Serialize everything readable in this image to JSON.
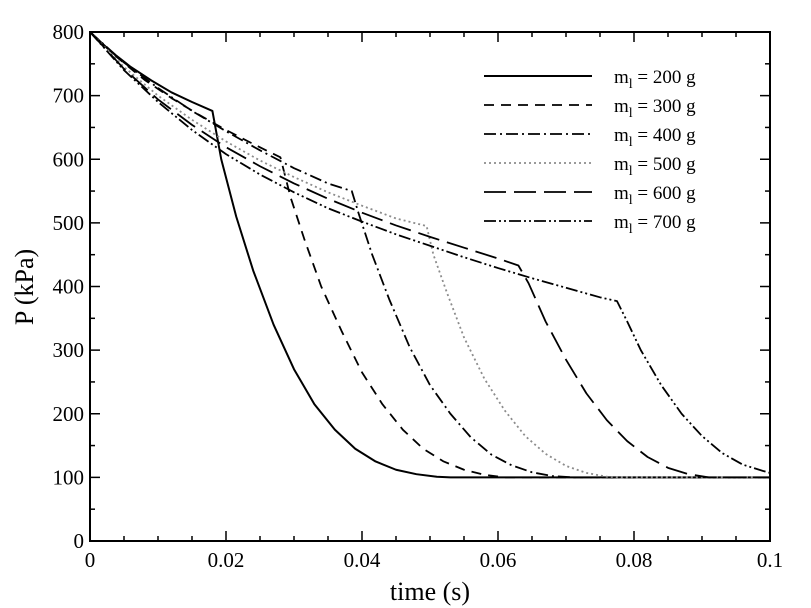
{
  "chart_data": {
    "type": "line",
    "xlabel": "time (s)",
    "ylabel": "P (kPa)",
    "xlim": [
      0,
      0.1
    ],
    "ylim": [
      0,
      800
    ],
    "xticks": [
      "0",
      "0.02",
      "0.04",
      "0.06",
      "0.08",
      "0.1"
    ],
    "yticks": [
      "0",
      "100",
      "200",
      "300",
      "400",
      "500",
      "600",
      "700",
      "800"
    ],
    "grid": false,
    "legend_position": "top-right",
    "series": [
      {
        "name": "m_l = 200 g",
        "legend": {
          "prefix": "m",
          "sub": "l",
          "suffix": " = 200 g"
        },
        "dash": "none",
        "color": "#000000",
        "width": 2,
        "points": [
          [
            0,
            800
          ],
          [
            0.003,
            770
          ],
          [
            0.006,
            745
          ],
          [
            0.009,
            724
          ],
          [
            0.012,
            705
          ],
          [
            0.015,
            690
          ],
          [
            0.018,
            676
          ],
          [
            0.0193,
            600
          ],
          [
            0.0215,
            510
          ],
          [
            0.024,
            425
          ],
          [
            0.027,
            340
          ],
          [
            0.03,
            270
          ],
          [
            0.033,
            215
          ],
          [
            0.036,
            175
          ],
          [
            0.039,
            145
          ],
          [
            0.042,
            125
          ],
          [
            0.045,
            112
          ],
          [
            0.048,
            105
          ],
          [
            0.051,
            101
          ],
          [
            0.053,
            100
          ],
          [
            0.1,
            100
          ]
        ]
      },
      {
        "name": "m_l = 300 g",
        "legend": {
          "prefix": "m",
          "sub": "l",
          "suffix": " = 300 g"
        },
        "dash": "10,7",
        "color": "#000000",
        "width": 1.8,
        "points": [
          [
            0,
            800
          ],
          [
            0.004,
            760
          ],
          [
            0.008,
            725
          ],
          [
            0.012,
            696
          ],
          [
            0.016,
            670
          ],
          [
            0.02,
            646
          ],
          [
            0.024,
            624
          ],
          [
            0.028,
            603
          ],
          [
            0.0295,
            540
          ],
          [
            0.0315,
            475
          ],
          [
            0.034,
            400
          ],
          [
            0.037,
            330
          ],
          [
            0.04,
            265
          ],
          [
            0.043,
            215
          ],
          [
            0.046,
            175
          ],
          [
            0.049,
            145
          ],
          [
            0.052,
            125
          ],
          [
            0.055,
            112
          ],
          [
            0.058,
            104
          ],
          [
            0.061,
            100
          ],
          [
            0.1,
            100
          ]
        ]
      },
      {
        "name": "m_l = 400 g",
        "legend": {
          "prefix": "m",
          "sub": "l",
          "suffix": " = 400 g"
        },
        "dash": "12,4,2,4",
        "color": "#000000",
        "width": 1.8,
        "points": [
          [
            0,
            800
          ],
          [
            0.005,
            752
          ],
          [
            0.01,
            712
          ],
          [
            0.015,
            676
          ],
          [
            0.02,
            644
          ],
          [
            0.025,
            614
          ],
          [
            0.03,
            586
          ],
          [
            0.035,
            562
          ],
          [
            0.0385,
            550
          ],
          [
            0.0395,
            515
          ],
          [
            0.0415,
            450
          ],
          [
            0.044,
            380
          ],
          [
            0.047,
            305
          ],
          [
            0.05,
            245
          ],
          [
            0.053,
            200
          ],
          [
            0.056,
            163
          ],
          [
            0.059,
            136
          ],
          [
            0.062,
            119
          ],
          [
            0.065,
            108
          ],
          [
            0.068,
            102
          ],
          [
            0.071,
            100
          ],
          [
            0.1,
            100
          ]
        ]
      },
      {
        "name": "m_l = 500 g",
        "legend": {
          "prefix": "m",
          "sub": "l",
          "suffix": " = 500 g"
        },
        "dash": "2,3",
        "color": "#8c8c8c",
        "width": 1.8,
        "points": [
          [
            0,
            800
          ],
          [
            0.005,
            745
          ],
          [
            0.01,
            700
          ],
          [
            0.015,
            662
          ],
          [
            0.02,
            628
          ],
          [
            0.025,
            598
          ],
          [
            0.03,
            572
          ],
          [
            0.035,
            548
          ],
          [
            0.04,
            527
          ],
          [
            0.045,
            507
          ],
          [
            0.0495,
            495
          ],
          [
            0.0505,
            450
          ],
          [
            0.0525,
            390
          ],
          [
            0.055,
            320
          ],
          [
            0.058,
            255
          ],
          [
            0.061,
            205
          ],
          [
            0.064,
            165
          ],
          [
            0.067,
            137
          ],
          [
            0.07,
            118
          ],
          [
            0.073,
            107
          ],
          [
            0.076,
            101
          ],
          [
            0.078,
            100
          ],
          [
            0.1,
            100
          ]
        ]
      },
      {
        "name": "m_l = 600 g",
        "legend": {
          "prefix": "m",
          "sub": "l",
          "suffix": " = 600 g"
        },
        "dash": "22,8",
        "color": "#000000",
        "width": 1.8,
        "points": [
          [
            0,
            800
          ],
          [
            0.005,
            742
          ],
          [
            0.01,
            694
          ],
          [
            0.015,
            654
          ],
          [
            0.02,
            619
          ],
          [
            0.025,
            589
          ],
          [
            0.03,
            562
          ],
          [
            0.035,
            538
          ],
          [
            0.04,
            516
          ],
          [
            0.045,
            496
          ],
          [
            0.05,
            478
          ],
          [
            0.055,
            461
          ],
          [
            0.06,
            444
          ],
          [
            0.063,
            433
          ],
          [
            0.0645,
            405
          ],
          [
            0.067,
            345
          ],
          [
            0.07,
            285
          ],
          [
            0.073,
            232
          ],
          [
            0.076,
            190
          ],
          [
            0.079,
            157
          ],
          [
            0.082,
            132
          ],
          [
            0.085,
            115
          ],
          [
            0.088,
            105
          ],
          [
            0.091,
            100
          ],
          [
            0.1,
            100
          ]
        ]
      },
      {
        "name": "m_l = 700 g",
        "legend": {
          "prefix": "m",
          "sub": "l",
          "suffix": " = 700 g"
        },
        "dash": "12,3,2,3,2,3",
        "color": "#000000",
        "width": 1.8,
        "points": [
          [
            0,
            800
          ],
          [
            0.005,
            740
          ],
          [
            0.01,
            690
          ],
          [
            0.015,
            646
          ],
          [
            0.02,
            608
          ],
          [
            0.025,
            576
          ],
          [
            0.03,
            548
          ],
          [
            0.035,
            523
          ],
          [
            0.04,
            502
          ],
          [
            0.045,
            482
          ],
          [
            0.05,
            464
          ],
          [
            0.055,
            446
          ],
          [
            0.06,
            429
          ],
          [
            0.065,
            413
          ],
          [
            0.07,
            398
          ],
          [
            0.075,
            383
          ],
          [
            0.0775,
            377
          ],
          [
            0.079,
            345
          ],
          [
            0.081,
            300
          ],
          [
            0.084,
            245
          ],
          [
            0.087,
            200
          ],
          [
            0.09,
            165
          ],
          [
            0.093,
            138
          ],
          [
            0.096,
            120
          ],
          [
            0.099,
            110
          ],
          [
            0.1,
            107
          ]
        ]
      }
    ]
  }
}
